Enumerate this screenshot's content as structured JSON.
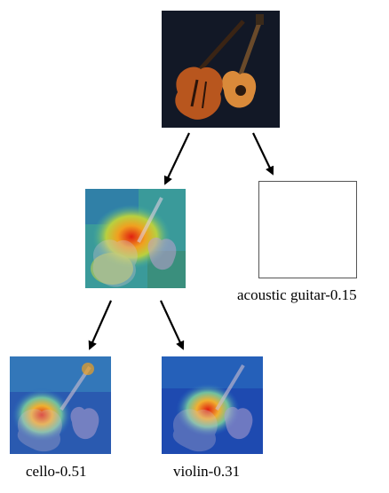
{
  "tree": {
    "root": {
      "icon": "cello-and-guitar-image"
    },
    "branches": [
      {
        "type": "heatmap",
        "icon": "attention-heatmap-image"
      },
      {
        "type": "empty",
        "label": "acoustic guitar-0.15"
      }
    ],
    "leaves": [
      {
        "type": "heatmap",
        "label": "cello-0.51"
      },
      {
        "type": "heatmap",
        "label": "violin-0.31"
      }
    ]
  },
  "colors": {
    "arrow": "#000000",
    "image_bg": "#121826",
    "wood": "#b8561e",
    "box_border": "#555555"
  }
}
